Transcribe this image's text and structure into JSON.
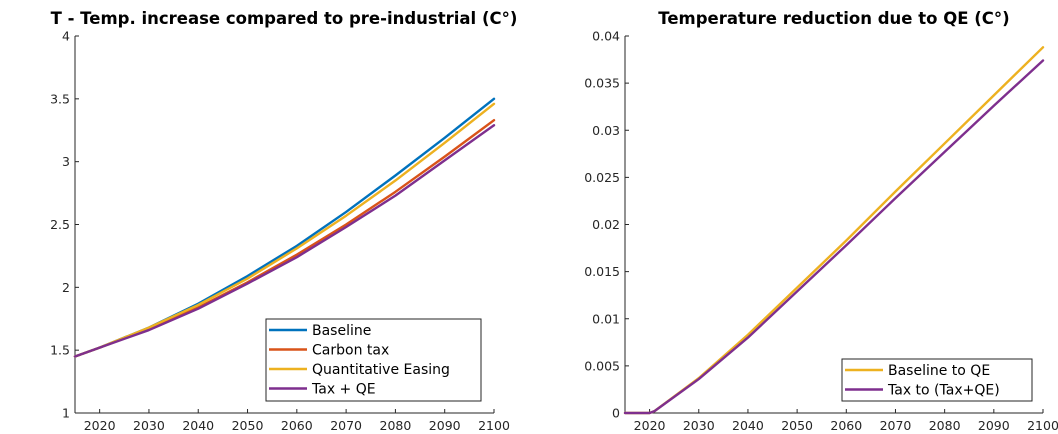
{
  "chart_data": [
    {
      "type": "line",
      "title": "T - Temp. increase compared to pre-industrial (C°)",
      "xlabel": "",
      "ylabel": "",
      "xlim": [
        2015,
        2100
      ],
      "ylim": [
        1,
        4
      ],
      "xticks": [
        2020,
        2030,
        2040,
        2050,
        2060,
        2070,
        2080,
        2090,
        2100
      ],
      "yticks": [
        1,
        1.5,
        2,
        2.5,
        3,
        3.5,
        4
      ],
      "ytick_labels": [
        "1",
        "1.5",
        "2",
        "2.5",
        "3",
        "3.5",
        "4"
      ],
      "grid": false,
      "legend": "bottom-right",
      "x": [
        2015,
        2020,
        2030,
        2040,
        2050,
        2060,
        2070,
        2080,
        2090,
        2100
      ],
      "series": [
        {
          "name": "Baseline",
          "color": "#0072BD",
          "values": [
            1.45,
            1.52,
            1.68,
            1.87,
            2.09,
            2.33,
            2.6,
            2.89,
            3.19,
            3.5
          ]
        },
        {
          "name": "Carbon tax",
          "color": "#D95319",
          "values": [
            1.45,
            1.52,
            1.67,
            1.84,
            2.04,
            2.26,
            2.5,
            2.76,
            3.04,
            3.33
          ]
        },
        {
          "name": "Quantitative Easing",
          "color": "#EDB120",
          "values": [
            1.45,
            1.52,
            1.68,
            1.86,
            2.07,
            2.31,
            2.57,
            2.85,
            3.15,
            3.46
          ]
        },
        {
          "name": "Tax + QE",
          "color": "#7E2F8E",
          "values": [
            1.45,
            1.52,
            1.66,
            1.83,
            2.03,
            2.24,
            2.48,
            2.73,
            3.01,
            3.29
          ]
        }
      ]
    },
    {
      "type": "line",
      "title": "Temperature reduction due to QE (C°)",
      "xlabel": "",
      "ylabel": "",
      "xlim": [
        2015,
        2100
      ],
      "ylim": [
        0,
        0.04
      ],
      "xticks": [
        2020,
        2030,
        2040,
        2050,
        2060,
        2070,
        2080,
        2090,
        2100
      ],
      "yticks": [
        0,
        0.005,
        0.01,
        0.015,
        0.02,
        0.025,
        0.03,
        0.035,
        0.04
      ],
      "ytick_labels": [
        "0",
        "0.005",
        "0.01",
        "0.015",
        "0.02",
        "0.025",
        "0.03",
        "0.035",
        "0.04"
      ],
      "grid": false,
      "legend": "bottom-right",
      "x": [
        2015,
        2020,
        2021,
        2030,
        2040,
        2050,
        2060,
        2070,
        2080,
        2090,
        2100
      ],
      "series": [
        {
          "name": "Baseline to QE",
          "color": "#EDB120",
          "values": [
            0,
            0,
            0.0002,
            0.0037,
            0.0083,
            0.0133,
            0.0183,
            0.0235,
            0.0286,
            0.0337,
            0.0388
          ]
        },
        {
          "name": "Tax to (Tax+QE)",
          "color": "#7E2F8E",
          "values": [
            0,
            0,
            0.0002,
            0.0036,
            0.008,
            0.0129,
            0.0178,
            0.0228,
            0.0277,
            0.0326,
            0.0374
          ]
        }
      ]
    }
  ]
}
